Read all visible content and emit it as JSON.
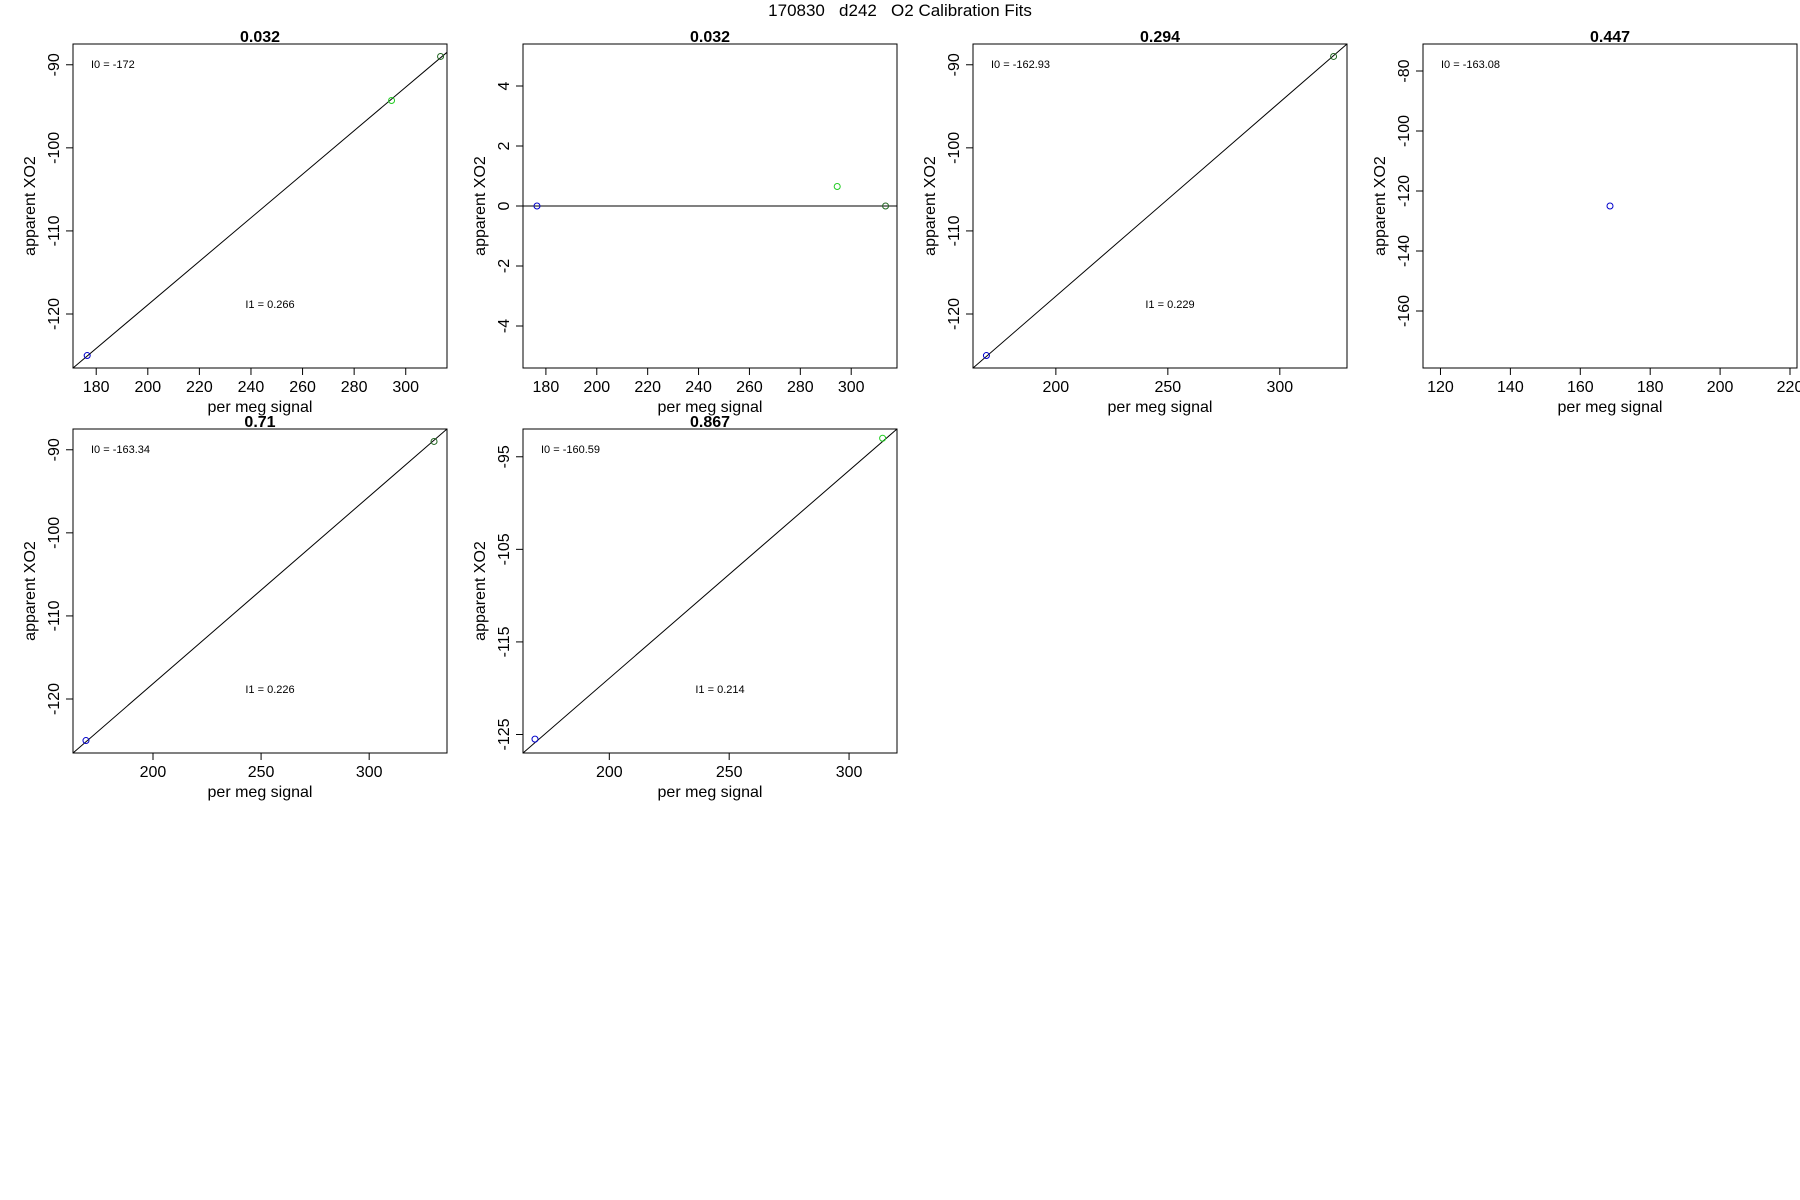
{
  "figure": {
    "title": "170830   d242   O2 Calibration Fits"
  },
  "colors": {
    "blue": "#0000cc",
    "green": "#22cc22",
    "dark_green": "#226622",
    "line": "#000000",
    "frame": "#000000"
  },
  "chart_data": [
    {
      "type": "scatter",
      "title": "0.032",
      "xlabel": "per meg signal",
      "ylabel": "apparent XO2",
      "xlim": [
        171,
        316
      ],
      "ylim": [
        -126.5,
        -87.5
      ],
      "xticks": [
        180,
        200,
        220,
        240,
        260,
        280,
        300
      ],
      "xtick_labels": [
        "180",
        "200",
        "220",
        "240",
        "260",
        "280",
        "300"
      ],
      "yticks": [
        -120,
        -110,
        -100,
        -90
      ],
      "ytick_labels": [
        "-120",
        "-110",
        "-100",
        "-90"
      ],
      "points": [
        {
          "x": 176.5,
          "y": -125.0,
          "color": "#0000cc"
        },
        {
          "x": 294.5,
          "y": -94.3,
          "color": "#22cc22"
        },
        {
          "x": 313.5,
          "y": -89.0,
          "color": "#226622"
        }
      ],
      "fit_line": {
        "x": [
          171,
          316
        ],
        "y": [
          -126.5,
          -88.5
        ]
      },
      "annotations": {
        "i0": "I0 =  -172",
        "i1": "I1 =  0.266"
      }
    },
    {
      "type": "scatter",
      "title": "0.032",
      "xlabel": "per meg signal",
      "ylabel": "apparent XO2",
      "xlim": [
        171,
        318
      ],
      "ylim": [
        -5.4,
        5.4
      ],
      "xticks": [
        180,
        200,
        220,
        240,
        260,
        280,
        300
      ],
      "xtick_labels": [
        "180",
        "200",
        "220",
        "240",
        "260",
        "280",
        "300"
      ],
      "yticks": [
        -4,
        -2,
        0,
        2,
        4
      ],
      "ytick_labels": [
        "-4",
        "-2",
        "0",
        "2",
        "4"
      ],
      "points": [
        {
          "x": 176.5,
          "y": 0.0,
          "color": "#0000cc"
        },
        {
          "x": 294.5,
          "y": 0.65,
          "color": "#22cc22"
        },
        {
          "x": 313.5,
          "y": 0.0,
          "color": "#226622"
        }
      ],
      "fit_line": {
        "x": [
          171,
          318
        ],
        "y": [
          0,
          0
        ]
      },
      "annotations": {}
    },
    {
      "type": "scatter",
      "title": "0.294",
      "xlabel": "per meg signal",
      "ylabel": "apparent XO2",
      "xlim": [
        163,
        330
      ],
      "ylim": [
        -126.5,
        -87.5
      ],
      "xticks": [
        200,
        250,
        300
      ],
      "xtick_labels": [
        "200",
        "250",
        "300"
      ],
      "yticks": [
        -120,
        -110,
        -100,
        -90
      ],
      "ytick_labels": [
        "-120",
        "-110",
        "-100",
        "-90"
      ],
      "points": [
        {
          "x": 169.0,
          "y": -125.0,
          "color": "#0000cc"
        },
        {
          "x": 324.0,
          "y": -89.0,
          "color": "#226622"
        }
      ],
      "fit_line": {
        "x": [
          163,
          330
        ],
        "y": [
          -126.5,
          -87.5
        ]
      },
      "annotations": {
        "i0": "I0 =  -162.93",
        "i1": "I1 =  0.229"
      }
    },
    {
      "type": "scatter",
      "title": "0.447",
      "xlabel": "per meg signal",
      "ylabel": "apparent XO2",
      "xlim": [
        115,
        222
      ],
      "ylim": [
        -179,
        -71
      ],
      "xticks": [
        120,
        140,
        160,
        180,
        200,
        220
      ],
      "xtick_labels": [
        "120",
        "140",
        "160",
        "180",
        "200",
        "220"
      ],
      "yticks": [
        -160,
        -140,
        -120,
        -100,
        -80
      ],
      "ytick_labels": [
        "-160",
        "-140",
        "-120",
        "-100",
        "-80"
      ],
      "points": [
        {
          "x": 168.5,
          "y": -125.0,
          "color": "#0000cc"
        }
      ],
      "annotations": {
        "i0": "I0 =  -163.08"
      }
    },
    {
      "type": "scatter",
      "title": "0.71",
      "xlabel": "per meg signal",
      "ylabel": "apparent XO2",
      "xlim": [
        163,
        336
      ],
      "ylim": [
        -126.5,
        -87.5
      ],
      "xticks": [
        200,
        250,
        300
      ],
      "xtick_labels": [
        "200",
        "250",
        "300"
      ],
      "yticks": [
        -120,
        -110,
        -100,
        -90
      ],
      "ytick_labels": [
        "-120",
        "-110",
        "-100",
        "-90"
      ],
      "points": [
        {
          "x": 169.0,
          "y": -125.0,
          "color": "#0000cc"
        },
        {
          "x": 330.0,
          "y": -89.0,
          "color": "#226622"
        }
      ],
      "fit_line": {
        "x": [
          163,
          336
        ],
        "y": [
          -126.5,
          -87.5
        ]
      },
      "annotations": {
        "i0": "I0 =  -163.34",
        "i1": "I1 =  0.226"
      }
    },
    {
      "type": "scatter",
      "title": "0.867",
      "xlabel": "per meg signal",
      "ylabel": "apparent XO2",
      "xlim": [
        164,
        320
      ],
      "ylim": [
        -127,
        -92
      ],
      "xticks": [
        200,
        250,
        300
      ],
      "xtick_labels": [
        "200",
        "250",
        "300"
      ],
      "yticks": [
        -125,
        -115,
        -105,
        -95
      ],
      "ytick_labels": [
        "-125",
        "-115",
        "-105",
        "-95"
      ],
      "points": [
        {
          "x": 169.0,
          "y": -125.5,
          "color": "#0000cc"
        },
        {
          "x": 314.0,
          "y": -93.0,
          "color": "#22cc22"
        }
      ],
      "fit_line": {
        "x": [
          164,
          320
        ],
        "y": [
          -127,
          -92
        ]
      },
      "annotations": {
        "i0": "I0 =  -160.59",
        "i1": "I1 =  0.214"
      }
    }
  ]
}
